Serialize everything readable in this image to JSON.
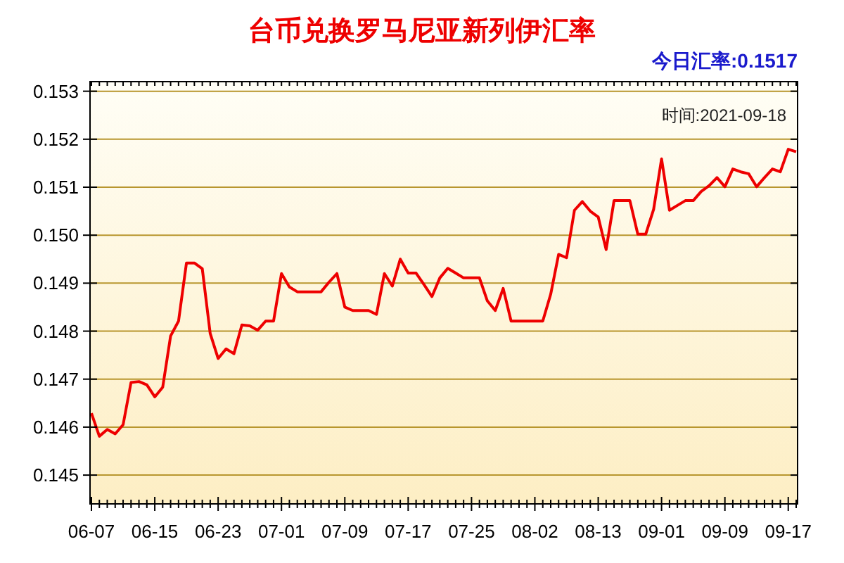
{
  "chart_data": {
    "type": "line",
    "title": "台币兑换罗马尼亚新列伊汇率",
    "annotations": [
      "今日汇率:0.1517",
      "时间:2021-09-18"
    ],
    "categories": [
      "06-07",
      null,
      null,
      null,
      null,
      null,
      null,
      null,
      "06-15",
      null,
      null,
      null,
      null,
      null,
      null,
      null,
      "06-23",
      null,
      null,
      null,
      null,
      null,
      null,
      null,
      "07-01",
      null,
      null,
      null,
      null,
      null,
      null,
      null,
      "07-09",
      null,
      null,
      null,
      null,
      null,
      null,
      null,
      "07-17",
      null,
      null,
      null,
      null,
      null,
      null,
      null,
      "07-25",
      null,
      null,
      null,
      null,
      null,
      null,
      null,
      "08-02",
      null,
      null,
      null,
      null,
      null,
      null,
      null,
      "08-13",
      null,
      null,
      null,
      null,
      null,
      null,
      null,
      "09-01",
      null,
      null,
      null,
      null,
      null,
      null,
      null,
      "09-09",
      null,
      null,
      null,
      null,
      null,
      null,
      null,
      "09-17",
      null
    ],
    "series": [
      {
        "color": "#ee0000",
        "values": [
          0.14629,
          0.14581,
          0.14595,
          0.14586,
          0.14605,
          0.14693,
          0.14695,
          0.14688,
          0.14663,
          0.14683,
          0.1479,
          0.14821,
          0.14942,
          0.14942,
          0.1493,
          0.14795,
          0.14743,
          0.14763,
          0.14753,
          0.14813,
          0.14811,
          0.14802,
          0.14821,
          0.14821,
          0.1492,
          0.14892,
          0.14882,
          0.14882,
          0.14882,
          0.14882,
          0.14902,
          0.1492,
          0.1485,
          0.14843,
          0.14843,
          0.14843,
          0.14835,
          0.1492,
          0.14894,
          0.1495,
          0.14921,
          0.14921,
          0.14897,
          0.14872,
          0.14911,
          0.14931,
          0.14921,
          0.14911,
          0.14911,
          0.14911,
          0.14863,
          0.14843,
          0.14889,
          0.14821,
          0.14821,
          0.14821,
          0.14821,
          0.14821,
          0.14877,
          0.1496,
          0.14953,
          0.15052,
          0.1507,
          0.1505,
          0.15038,
          0.1497,
          0.15072,
          0.15072,
          0.15072,
          0.15002,
          0.15002,
          0.15054,
          0.15159,
          0.15052,
          0.15062,
          0.15072,
          0.15072,
          0.15091,
          0.15103,
          0.1512,
          0.15101,
          0.15138,
          0.15132,
          0.15128,
          0.15101,
          0.1512,
          0.15138,
          0.15132,
          0.15179,
          0.15174
        ]
      }
    ],
    "ylim": [
      0.1444,
      0.1532
    ],
    "yticks": [
      0.145,
      0.146,
      0.147,
      0.148,
      0.149,
      {
        "value": 0.15,
        "label": "0.150"
      },
      0.151,
      0.152,
      0.153
    ],
    "grid": "y",
    "marker": "none",
    "line_style": "solid"
  }
}
